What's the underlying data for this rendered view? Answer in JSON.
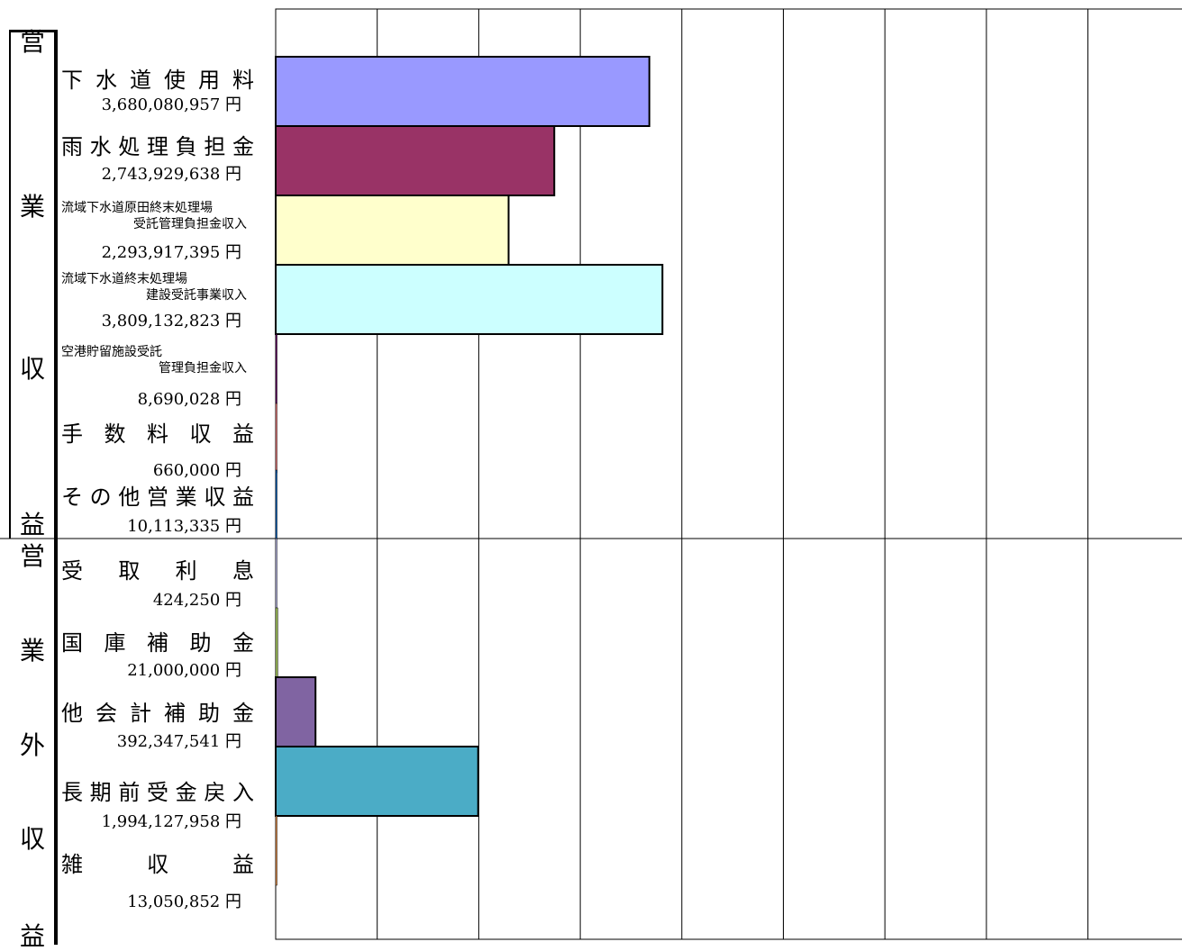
{
  "chart_data": {
    "type": "bar",
    "orientation": "horizontal",
    "groups": [
      {
        "label": "営業収益",
        "chars": [
          "営",
          "業",
          "収",
          "益"
        ]
      },
      {
        "label": "営業外収益",
        "chars": [
          "営",
          "業",
          "外",
          "収",
          "益"
        ]
      }
    ],
    "categories": [
      {
        "name": "下水道使用料",
        "value": 3680080957,
        "value_label": "3,680,080,957 円",
        "color": "#9999FF",
        "group": 0
      },
      {
        "name": "雨水処理負担金",
        "value": 2743929638,
        "value_label": "2,743,929,638 円",
        "color": "#993366",
        "group": 0
      },
      {
        "name": "流域下水道原田終末処理場",
        "name2": "受託管理負担金収入",
        "value": 2293917395,
        "value_label": "2,293,917,395 円",
        "color": "#FFFFCC",
        "group": 0
      },
      {
        "name": "流域下水道終末処理場",
        "name2": "建設受託事業収入",
        "value": 3809132823,
        "value_label": "3,809,132,823 円",
        "color": "#CCFFFF",
        "group": 0
      },
      {
        "name": "空港貯留施設受託",
        "name2": "管理負担金収入",
        "value": 8690028,
        "value_label": "8,690,028 円",
        "color": "#660066",
        "group": 0
      },
      {
        "name": "手数料収益",
        "value": 660000,
        "value_label": "660,000 円",
        "color": "#FF8080",
        "group": 0
      },
      {
        "name": "その他営業収益",
        "value": 10113335,
        "value_label": "10,113,335 円",
        "color": "#0066CC",
        "group": 0
      },
      {
        "name": "受取利息",
        "value": 424250,
        "value_label": "424,250 円",
        "color": "#CCCCFF",
        "group": 1
      },
      {
        "name": "国庫補助金",
        "value": 21000000,
        "value_label": "21,000,000 円",
        "color": "#9BBB59",
        "group": 1
      },
      {
        "name": "他会計補助金",
        "value": 392347541,
        "value_label": "392,347,541 円",
        "color": "#8064A2",
        "group": 1
      },
      {
        "name": "長期前受金戻入",
        "value": 1994127958,
        "value_label": "1,994,127,958 円",
        "color": "#4BACC6",
        "group": 1
      },
      {
        "name": "雑収益",
        "value": 13050852,
        "value_label": "13,050,852 円",
        "color": "#F79646",
        "group": 1
      }
    ],
    "xlim": [
      0,
      9000000000
    ],
    "grid": true,
    "legend": "none"
  }
}
